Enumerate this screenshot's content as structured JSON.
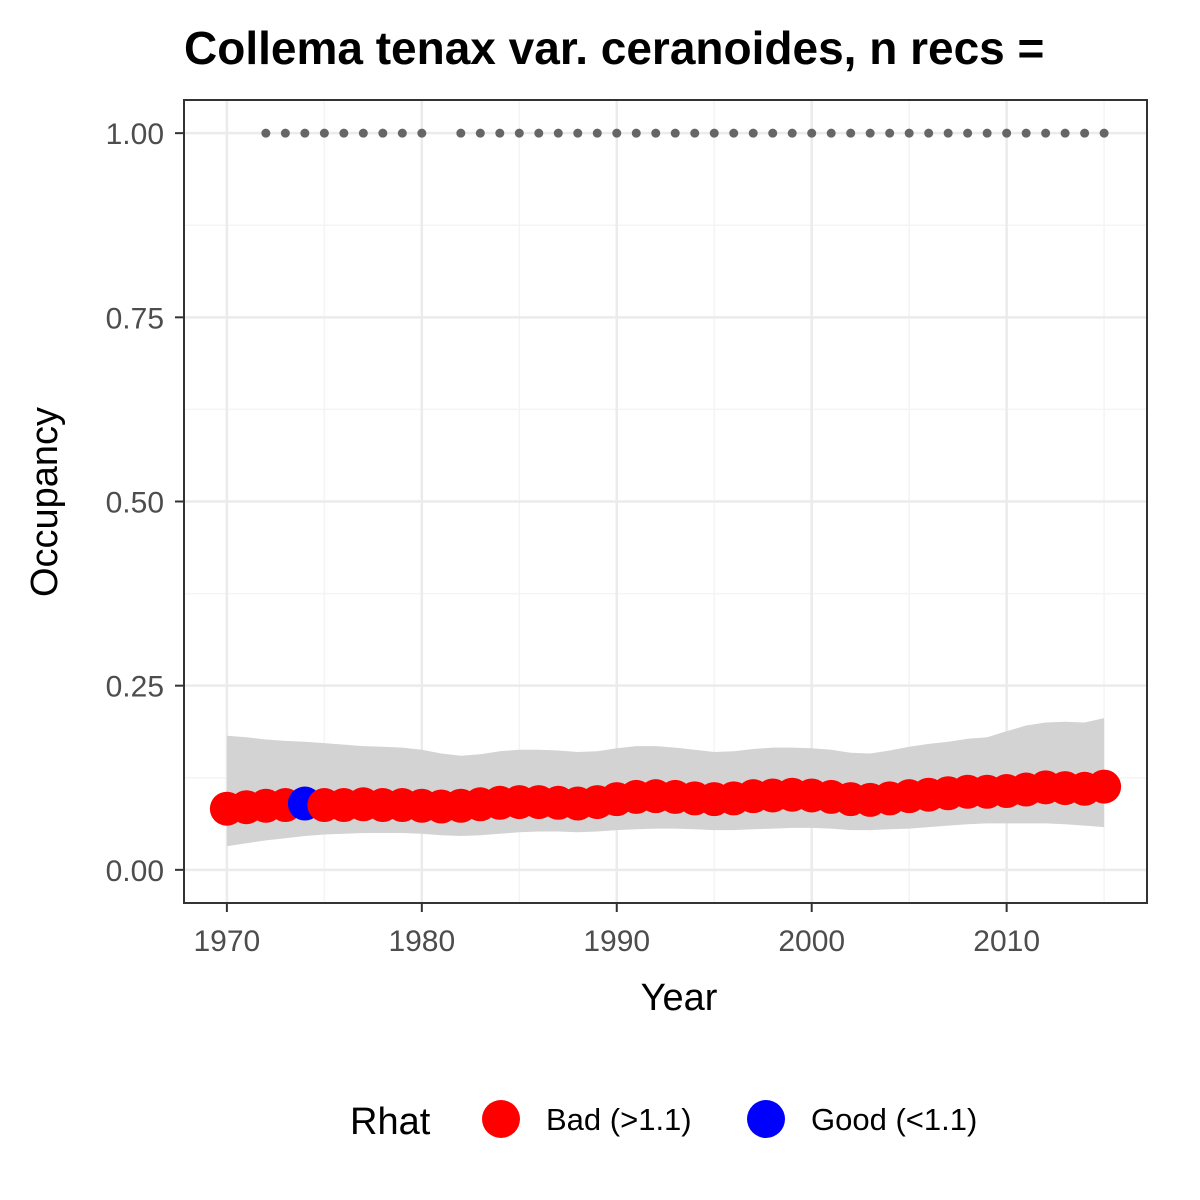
{
  "chart_data": {
    "type": "line",
    "title": "Collema tenax var. ceranoides, n recs = ",
    "xlabel": "Year",
    "ylabel": "Occupancy",
    "xlim": [
      1967.8,
      2017.2
    ],
    "ylim": [
      -0.045,
      1.045
    ],
    "x_ticks": [
      1970,
      1980,
      1990,
      2000,
      2010
    ],
    "x_tick_labels": [
      "1970",
      "1980",
      "1990",
      "2000",
      "2010"
    ],
    "y_ticks": [
      0.0,
      0.25,
      0.5,
      0.75,
      1.0
    ],
    "y_tick_labels": [
      "0.00",
      "0.25",
      "0.50",
      "0.75",
      "1.00"
    ],
    "grid": true,
    "legend": {
      "title": "Rhat",
      "placement": "bottom",
      "entries": [
        {
          "label": "Bad (>1.1)",
          "color": "#ff0000"
        },
        {
          "label": "Good (<1.1)",
          "color": "#0000ff"
        }
      ]
    },
    "years": [
      1970,
      1971,
      1972,
      1973,
      1974,
      1975,
      1976,
      1977,
      1978,
      1979,
      1980,
      1981,
      1982,
      1983,
      1984,
      1985,
      1986,
      1987,
      1988,
      1989,
      1990,
      1991,
      1992,
      1993,
      1994,
      1995,
      1996,
      1997,
      1998,
      1999,
      2000,
      2001,
      2002,
      2003,
      2004,
      2005,
      2006,
      2007,
      2008,
      2009,
      2010,
      2011,
      2012,
      2013,
      2014,
      2015
    ],
    "occupancy": [
      0.083,
      0.085,
      0.087,
      0.088,
      0.09,
      0.088,
      0.088,
      0.089,
      0.088,
      0.088,
      0.087,
      0.086,
      0.087,
      0.089,
      0.091,
      0.092,
      0.092,
      0.091,
      0.09,
      0.092,
      0.096,
      0.099,
      0.1,
      0.099,
      0.097,
      0.096,
      0.097,
      0.1,
      0.101,
      0.102,
      0.101,
      0.099,
      0.096,
      0.095,
      0.097,
      0.1,
      0.102,
      0.104,
      0.106,
      0.106,
      0.107,
      0.109,
      0.112,
      0.111,
      0.11,
      0.113
    ],
    "rhat": [
      "Bad",
      "Bad",
      "Bad",
      "Bad",
      "Good",
      "Bad",
      "Bad",
      "Bad",
      "Bad",
      "Bad",
      "Bad",
      "Bad",
      "Bad",
      "Bad",
      "Bad",
      "Bad",
      "Bad",
      "Bad",
      "Bad",
      "Bad",
      "Bad",
      "Bad",
      "Bad",
      "Bad",
      "Bad",
      "Bad",
      "Bad",
      "Bad",
      "Bad",
      "Bad",
      "Bad",
      "Bad",
      "Bad",
      "Bad",
      "Bad",
      "Bad",
      "Bad",
      "Bad",
      "Bad",
      "Bad",
      "Bad",
      "Bad",
      "Bad",
      "Bad",
      "Bad",
      "Bad"
    ],
    "ci_lower": [
      0.032,
      0.036,
      0.04,
      0.043,
      0.046,
      0.048,
      0.049,
      0.05,
      0.05,
      0.05,
      0.049,
      0.047,
      0.046,
      0.047,
      0.049,
      0.051,
      0.052,
      0.052,
      0.051,
      0.052,
      0.054,
      0.055,
      0.056,
      0.056,
      0.055,
      0.054,
      0.054,
      0.055,
      0.056,
      0.057,
      0.057,
      0.056,
      0.054,
      0.054,
      0.055,
      0.056,
      0.058,
      0.06,
      0.062,
      0.063,
      0.063,
      0.063,
      0.063,
      0.062,
      0.06,
      0.058
    ],
    "ci_upper": [
      0.182,
      0.18,
      0.177,
      0.175,
      0.174,
      0.172,
      0.17,
      0.168,
      0.167,
      0.166,
      0.163,
      0.158,
      0.155,
      0.157,
      0.161,
      0.163,
      0.163,
      0.162,
      0.16,
      0.161,
      0.165,
      0.168,
      0.168,
      0.166,
      0.163,
      0.16,
      0.161,
      0.164,
      0.166,
      0.166,
      0.165,
      0.163,
      0.159,
      0.158,
      0.162,
      0.167,
      0.171,
      0.174,
      0.178,
      0.18,
      0.188,
      0.196,
      0.2,
      0.201,
      0.2,
      0.206
    ],
    "records": {
      "occupancy": 1.0,
      "years": [
        1972,
        1973,
        1974,
        1975,
        1976,
        1977,
        1978,
        1979,
        1980,
        1982,
        1983,
        1984,
        1985,
        1986,
        1987,
        1988,
        1989,
        1990,
        1991,
        1992,
        1993,
        1994,
        1995,
        1996,
        1997,
        1998,
        1999,
        2000,
        2001,
        2002,
        2003,
        2004,
        2005,
        2006,
        2007,
        2008,
        2009,
        2010,
        2011,
        2012,
        2013,
        2014,
        2015
      ]
    },
    "colors": {
      "bad": "#ff0000",
      "good": "#0000ff",
      "ribbon": "#d3d3d3",
      "records": "#666666",
      "grid_major": "#ebebeb",
      "grid_minor": "#f4f4f4",
      "panel_border": "#333333"
    }
  }
}
